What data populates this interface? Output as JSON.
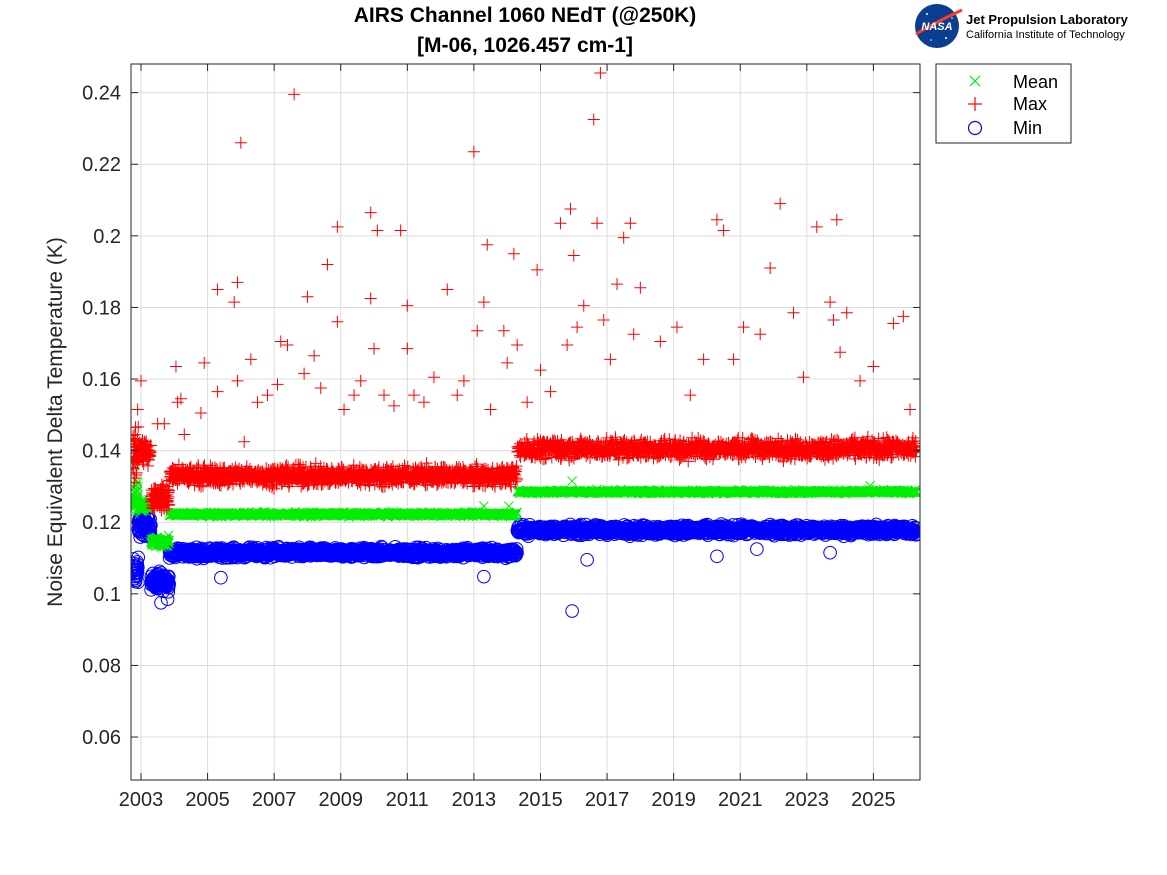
{
  "chart_data": {
    "type": "scatter",
    "title": "AIRS Channel 1060 NEdT (@250K)",
    "subtitle": "[M-06, 1026.457 cm-1]",
    "xlabel": "",
    "ylabel": "Noise Equivalent Delta Temperature (K)",
    "xlim": [
      2002.7,
      2026.4
    ],
    "ylim": [
      0.048,
      0.248
    ],
    "x_ticks": [
      2003,
      2005,
      2007,
      2009,
      2011,
      2013,
      2015,
      2017,
      2019,
      2021,
      2023,
      2025
    ],
    "x_tick_labels": [
      "2003",
      "2005",
      "2007",
      "2009",
      "2011",
      "2013",
      "2015",
      "2017",
      "2019",
      "2021",
      "2023",
      "2025"
    ],
    "y_ticks": [
      0.06,
      0.08,
      0.1,
      0.12,
      0.14,
      0.16,
      0.18,
      0.2,
      0.22,
      0.24
    ],
    "y_tick_labels": [
      "0.06",
      "0.08",
      "0.1",
      "0.12",
      "0.14",
      "0.16",
      "0.18",
      "0.2",
      "0.22",
      "0.24"
    ],
    "grid": true,
    "legend_position": "outside-top-right",
    "series": [
      {
        "name": "Mean",
        "marker": "x",
        "color": "#00ee00",
        "segments": [
          {
            "x0": 2002.75,
            "x1": 2002.92,
            "y": 0.127,
            "noise": 0.004,
            "n": 35
          },
          {
            "x0": 2002.92,
            "x1": 2003.3,
            "y": 0.1245,
            "noise": 0.0015,
            "n": 70
          },
          {
            "x0": 2003.3,
            "x1": 2003.85,
            "y": 0.1145,
            "noise": 0.0015,
            "n": 90
          },
          {
            "x0": 2003.85,
            "x1": 2014.3,
            "y": 0.1222,
            "noise": 0.0006,
            "n": 900
          },
          {
            "x0": 2014.3,
            "x1": 2026.3,
            "y": 0.1285,
            "noise": 0.0005,
            "n": 1000
          }
        ],
        "outliers": [
          [
            2002.82,
            0.1355
          ],
          [
            2002.88,
            0.1315
          ],
          [
            2013.3,
            0.1245
          ],
          [
            2014.05,
            0.1245
          ],
          [
            2015.95,
            0.1315
          ],
          [
            2024.9,
            0.1302
          ]
        ]
      },
      {
        "name": "Max",
        "marker": "+",
        "color": "#ff0000",
        "segments": [
          {
            "x0": 2002.75,
            "x1": 2002.92,
            "y": 0.138,
            "noise": 0.008,
            "n": 40
          },
          {
            "x0": 2002.92,
            "x1": 2003.3,
            "y": 0.1395,
            "noise": 0.003,
            "n": 70
          },
          {
            "x0": 2003.3,
            "x1": 2003.85,
            "y": 0.127,
            "noise": 0.0035,
            "n": 100
          },
          {
            "x0": 2003.85,
            "x1": 2014.3,
            "y": 0.133,
            "noise": 0.0028,
            "n": 1200
          },
          {
            "x0": 2014.3,
            "x1": 2026.3,
            "y": 0.1405,
            "noise": 0.0028,
            "n": 1300
          }
        ],
        "outliers": [
          [
            2002.9,
            0.1515
          ],
          [
            2003.0,
            0.1595
          ],
          [
            2003.1,
            0.1425
          ],
          [
            2003.5,
            0.1475
          ],
          [
            2003.7,
            0.1475
          ],
          [
            2004.05,
            0.1635
          ],
          [
            2004.1,
            0.1535
          ],
          [
            2004.2,
            0.1545
          ],
          [
            2004.3,
            0.1445
          ],
          [
            2004.8,
            0.1505
          ],
          [
            2004.9,
            0.1645
          ],
          [
            2005.3,
            0.185
          ],
          [
            2005.3,
            0.1565
          ],
          [
            2005.8,
            0.1815
          ],
          [
            2005.9,
            0.187
          ],
          [
            2005.9,
            0.1595
          ],
          [
            2006.0,
            0.226
          ],
          [
            2006.1,
            0.1425
          ],
          [
            2006.3,
            0.1655
          ],
          [
            2006.5,
            0.1535
          ],
          [
            2006.8,
            0.1555
          ],
          [
            2007.1,
            0.1585
          ],
          [
            2007.2,
            0.1705
          ],
          [
            2007.4,
            0.1695
          ],
          [
            2007.6,
            0.2395
          ],
          [
            2007.9,
            0.1615
          ],
          [
            2008.0,
            0.183
          ],
          [
            2008.2,
            0.1665
          ],
          [
            2008.4,
            0.1575
          ],
          [
            2008.6,
            0.192
          ],
          [
            2008.9,
            0.2025
          ],
          [
            2008.9,
            0.176
          ],
          [
            2009.1,
            0.1515
          ],
          [
            2009.4,
            0.1555
          ],
          [
            2009.6,
            0.1595
          ],
          [
            2009.9,
            0.2065
          ],
          [
            2009.9,
            0.1825
          ],
          [
            2010.0,
            0.1685
          ],
          [
            2010.1,
            0.2015
          ],
          [
            2010.3,
            0.1555
          ],
          [
            2010.6,
            0.1525
          ],
          [
            2010.8,
            0.2015
          ],
          [
            2011.0,
            0.1805
          ],
          [
            2011.0,
            0.1685
          ],
          [
            2011.2,
            0.1555
          ],
          [
            2011.5,
            0.1535
          ],
          [
            2011.8,
            0.1605
          ],
          [
            2012.2,
            0.185
          ],
          [
            2012.5,
            0.1555
          ],
          [
            2012.7,
            0.1595
          ],
          [
            2013.0,
            0.2235
          ],
          [
            2013.1,
            0.1735
          ],
          [
            2013.3,
            0.1815
          ],
          [
            2013.4,
            0.1975
          ],
          [
            2013.5,
            0.1515
          ],
          [
            2013.9,
            0.1735
          ],
          [
            2014.0,
            0.1645
          ],
          [
            2014.2,
            0.195
          ],
          [
            2014.3,
            0.1695
          ],
          [
            2014.6,
            0.1535
          ],
          [
            2014.9,
            0.1905
          ],
          [
            2015.0,
            0.1625
          ],
          [
            2015.3,
            0.1565
          ],
          [
            2015.6,
            0.2035
          ],
          [
            2015.8,
            0.1695
          ],
          [
            2015.9,
            0.2075
          ],
          [
            2016.0,
            0.1945
          ],
          [
            2016.1,
            0.1745
          ],
          [
            2016.3,
            0.1805
          ],
          [
            2016.6,
            0.2325
          ],
          [
            2016.7,
            0.2035
          ],
          [
            2016.8,
            0.2455
          ],
          [
            2016.9,
            0.1765
          ],
          [
            2017.1,
            0.1655
          ],
          [
            2017.3,
            0.1865
          ],
          [
            2017.5,
            0.1995
          ],
          [
            2017.7,
            0.2035
          ],
          [
            2017.8,
            0.1725
          ],
          [
            2018.0,
            0.1855
          ],
          [
            2018.6,
            0.1705
          ],
          [
            2019.1,
            0.1745
          ],
          [
            2019.5,
            0.1555
          ],
          [
            2019.9,
            0.1655
          ],
          [
            2020.3,
            0.2045
          ],
          [
            2020.5,
            0.2015
          ],
          [
            2020.8,
            0.1655
          ],
          [
            2021.1,
            0.1745
          ],
          [
            2021.6,
            0.1725
          ],
          [
            2021.9,
            0.191
          ],
          [
            2022.2,
            0.209
          ],
          [
            2022.6,
            0.1785
          ],
          [
            2022.9,
            0.1605
          ],
          [
            2023.3,
            0.2025
          ],
          [
            2023.7,
            0.1815
          ],
          [
            2023.8,
            0.1765
          ],
          [
            2023.9,
            0.2045
          ],
          [
            2024.0,
            0.1675
          ],
          [
            2024.2,
            0.1785
          ],
          [
            2024.6,
            0.1595
          ],
          [
            2025.0,
            0.1635
          ],
          [
            2025.6,
            0.1755
          ],
          [
            2025.9,
            0.1775
          ],
          [
            2026.1,
            0.1515
          ]
        ]
      },
      {
        "name": "Min",
        "marker": "o",
        "color": "#0000ff",
        "segments": [
          {
            "x0": 2002.75,
            "x1": 2002.92,
            "y": 0.106,
            "noise": 0.004,
            "n": 30
          },
          {
            "x0": 2002.92,
            "x1": 2003.3,
            "y": 0.119,
            "noise": 0.003,
            "n": 70
          },
          {
            "x0": 2003.3,
            "x1": 2003.85,
            "y": 0.1035,
            "noise": 0.0025,
            "n": 100
          },
          {
            "x0": 2003.85,
            "x1": 2014.3,
            "y": 0.1115,
            "noise": 0.0014,
            "n": 1100
          },
          {
            "x0": 2014.3,
            "x1": 2026.3,
            "y": 0.1178,
            "noise": 0.0014,
            "n": 1200
          }
        ],
        "outliers": [
          [
            2003.6,
            0.0975
          ],
          [
            2003.8,
            0.0985
          ],
          [
            2005.4,
            0.1045
          ],
          [
            2013.3,
            0.1048
          ],
          [
            2015.95,
            0.0952
          ],
          [
            2016.4,
            0.1095
          ],
          [
            2020.3,
            0.1105
          ],
          [
            2021.5,
            0.1125
          ],
          [
            2023.7,
            0.1115
          ]
        ]
      }
    ]
  },
  "logo": {
    "nasa_text": "NASA",
    "org_name": "Jet Propulsion Laboratory",
    "org_sub": "California Institute of Technology"
  }
}
